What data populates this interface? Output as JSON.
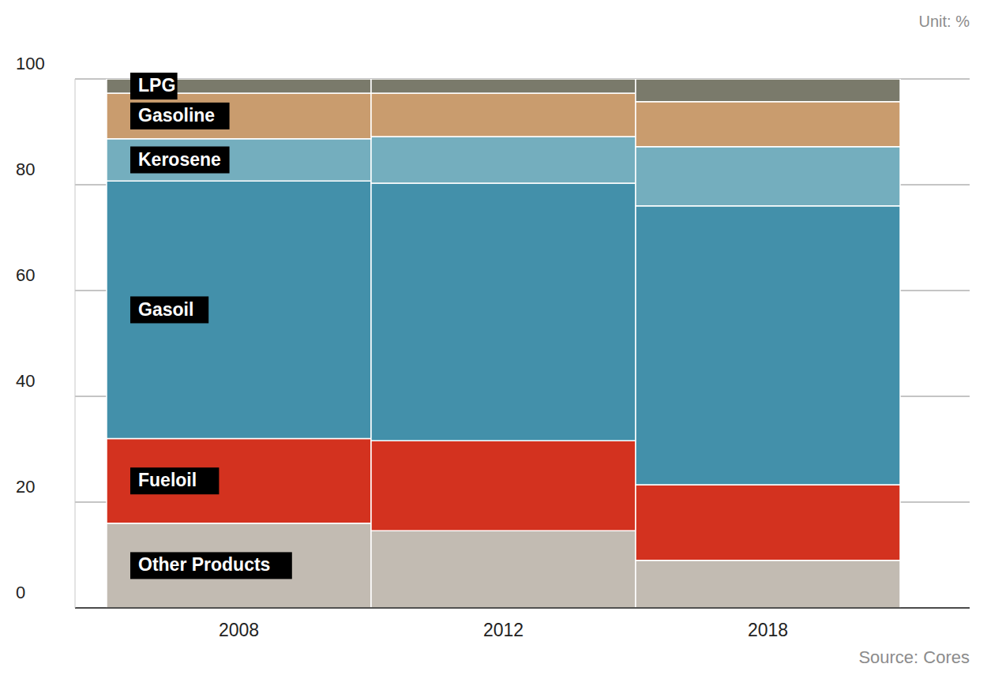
{
  "chart_data": {
    "type": "bar",
    "subtitle": "Unit: %",
    "annotations": [
      "Source: Cores"
    ],
    "categories": [
      "2008",
      "2012",
      "2018"
    ],
    "series": [
      {
        "name": "Other Products",
        "color": "#c2bbb2",
        "values": [
          16,
          14.6,
          9
        ]
      },
      {
        "name": "Fueloil",
        "color": "#d3321f",
        "values": [
          16,
          17,
          14.3
        ]
      },
      {
        "name": "Gasoil",
        "color": "#4390aa",
        "values": [
          48.7,
          48.7,
          52.7
        ]
      },
      {
        "name": "Kerosene",
        "color": "#74aebe",
        "values": [
          8,
          8.8,
          11.2
        ]
      },
      {
        "name": "Gasoline",
        "color": "#c99c6e",
        "values": [
          8.6,
          8.2,
          8.5
        ]
      },
      {
        "name": "LPG",
        "color": "#7a7a6b",
        "values": [
          2.7,
          2.7,
          4.3
        ]
      }
    ],
    "ylim": [
      0,
      100
    ],
    "yticks": [
      0,
      20,
      40,
      60,
      80,
      100
    ],
    "grid": true,
    "stacked": true
  }
}
